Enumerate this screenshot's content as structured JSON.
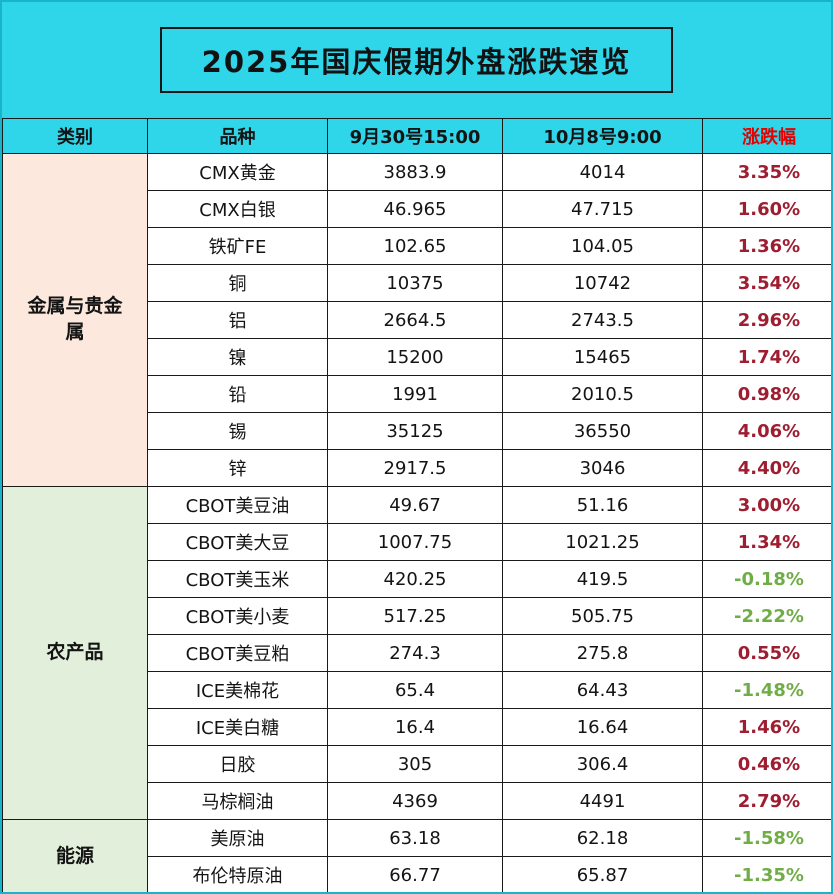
{
  "title": "2025年国庆假期外盘涨跌速览",
  "colors": {
    "header_bg": "#2fd5e9",
    "outer_border": "#17b4ca",
    "positive": "#9e1d30",
    "negative": "#70ad47",
    "change_header_red": "#e60000",
    "metal_bg": "#fce8dc",
    "agri_bg": "#e2efda",
    "energy_bg": "#e2efda"
  },
  "table": {
    "columns": [
      "类别",
      "品种",
      "9月30号15:00",
      "10月8号9:00",
      "涨跌幅"
    ],
    "sections": [
      {
        "category": "金属与贵金属",
        "bg": "#fce8dc",
        "rows": [
          {
            "name": "CMX黄金",
            "prev": "3883.9",
            "curr": "4014",
            "change": "3.35%"
          },
          {
            "name": "CMX白银",
            "prev": "46.965",
            "curr": "47.715",
            "change": "1.60%"
          },
          {
            "name": "铁矿FE",
            "prev": "102.65",
            "curr": "104.05",
            "change": "1.36%"
          },
          {
            "name": "铜",
            "prev": "10375",
            "curr": "10742",
            "change": "3.54%"
          },
          {
            "name": "铝",
            "prev": "2664.5",
            "curr": "2743.5",
            "change": "2.96%"
          },
          {
            "name": "镍",
            "prev": "15200",
            "curr": "15465",
            "change": "1.74%"
          },
          {
            "name": "铅",
            "prev": "1991",
            "curr": "2010.5",
            "change": "0.98%"
          },
          {
            "name": "锡",
            "prev": "35125",
            "curr": "36550",
            "change": "4.06%"
          },
          {
            "name": "锌",
            "prev": "2917.5",
            "curr": "3046",
            "change": "4.40%"
          }
        ]
      },
      {
        "category": "农产品",
        "bg": "#e2efda",
        "rows": [
          {
            "name": "CBOT美豆油",
            "prev": "49.67",
            "curr": "51.16",
            "change": "3.00%"
          },
          {
            "name": "CBOT美大豆",
            "prev": "1007.75",
            "curr": "1021.25",
            "change": "1.34%"
          },
          {
            "name": "CBOT美玉米",
            "prev": "420.25",
            "curr": "419.5",
            "change": "-0.18%"
          },
          {
            "name": "CBOT美小麦",
            "prev": "517.25",
            "curr": "505.75",
            "change": "-2.22%"
          },
          {
            "name": "CBOT美豆粕",
            "prev": "274.3",
            "curr": "275.8",
            "change": "0.55%"
          },
          {
            "name": "ICE美棉花",
            "prev": "65.4",
            "curr": "64.43",
            "change": "-1.48%"
          },
          {
            "name": "ICE美白糖",
            "prev": "16.4",
            "curr": "16.64",
            "change": "1.46%"
          },
          {
            "name": "日胶",
            "prev": "305",
            "curr": "306.4",
            "change": "0.46%"
          },
          {
            "name": "马棕榈油",
            "prev": "4369",
            "curr": "4491",
            "change": "2.79%"
          }
        ]
      },
      {
        "category": "能源",
        "bg": "#e2efda",
        "rows": [
          {
            "name": "美原油",
            "prev": "63.18",
            "curr": "62.18",
            "change": "-1.58%"
          },
          {
            "name": "布伦特原油",
            "prev": "66.77",
            "curr": "65.87",
            "change": "-1.35%"
          }
        ]
      }
    ]
  }
}
